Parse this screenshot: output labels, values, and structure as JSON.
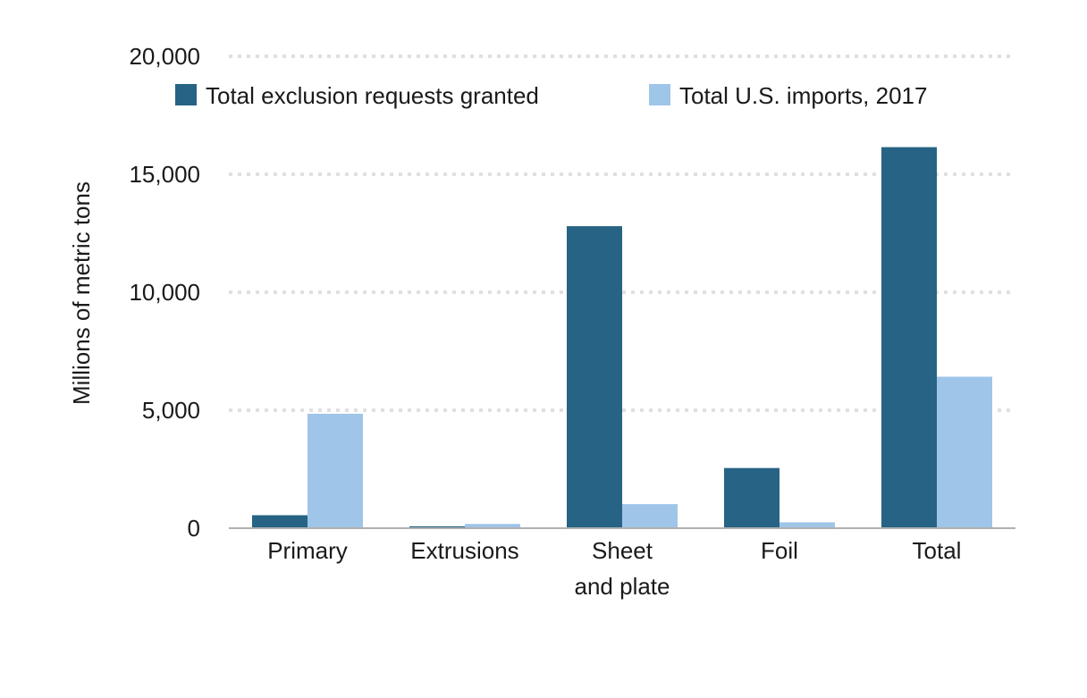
{
  "chart_data": {
    "type": "bar",
    "ylabel": "Millions of metric tons",
    "ylim": [
      0,
      20000
    ],
    "yticks": [
      0,
      5000,
      10000,
      15000,
      20000
    ],
    "ytick_labels": [
      "0",
      "5,000",
      "10,000",
      "15,000",
      "20,000"
    ],
    "grid": true,
    "legend_position": "top",
    "categories": [
      [
        "Primary"
      ],
      [
        "Extrusions"
      ],
      [
        "Sheet",
        "and plate"
      ],
      [
        "Foil"
      ],
      [
        "Total"
      ]
    ],
    "series": [
      {
        "name": "Total exclusion requests granted",
        "color": "#276384",
        "values": [
          550,
          80,
          12800,
          2550,
          16150
        ]
      },
      {
        "name": "Total U.S. imports, 2017",
        "color": "#9fc5e8",
        "values": [
          4850,
          180,
          1020,
          250,
          6420
        ]
      }
    ]
  }
}
